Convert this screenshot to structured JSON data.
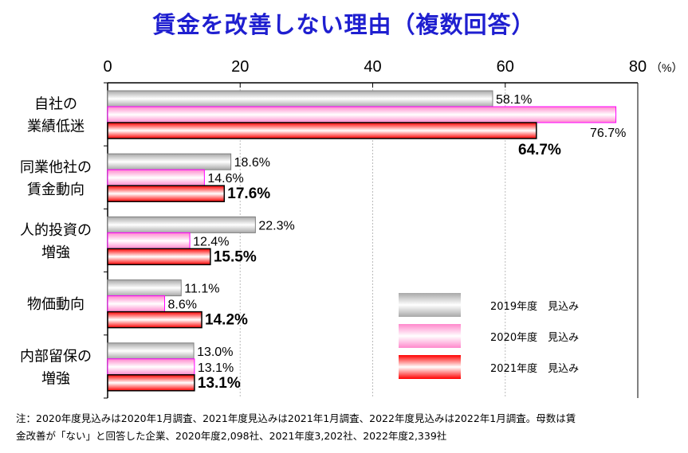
{
  "title": "賃金を改善しない理由（複数回答）",
  "chart_data": {
    "type": "bar",
    "orientation": "horizontal",
    "title": "賃金を改善しない理由（複数回答）",
    "unit_label": "（%）",
    "xlim": [
      0,
      80
    ],
    "ticks": [
      "0",
      "20",
      "40",
      "60",
      "80"
    ],
    "grid": true,
    "legend_position": "bottom-right",
    "categories": [
      [
        "自社の",
        "業績低迷"
      ],
      [
        "同業他社の",
        "賃金動向"
      ],
      [
        "人的投資の",
        "増強"
      ],
      [
        "物価動向"
      ],
      [
        "内部留保の",
        "増強"
      ]
    ],
    "series": [
      {
        "name": "2019年度　見込み",
        "color": "#b0b0b0",
        "edge": "#808080",
        "values": [
          58.1,
          18.6,
          22.3,
          11.1,
          13.0
        ],
        "labels": [
          "58.1%",
          "18.6%",
          "22.3%",
          "11.1%",
          "13.0%"
        ]
      },
      {
        "name": "2020年度　見込み",
        "color": "#ff88cc",
        "edge": "#ff00ff",
        "values": [
          76.7,
          14.6,
          12.4,
          8.6,
          13.1
        ],
        "labels": [
          "76.7%",
          "14.6%",
          "12.4%",
          "8.6%",
          "13.1%"
        ]
      },
      {
        "name": "2021年度　見込み",
        "color": "#ff0000",
        "edge": "#000000",
        "values": [
          64.7,
          17.6,
          15.5,
          14.2,
          13.1
        ],
        "labels": [
          "64.7%",
          "17.6%",
          "15.5%",
          "14.2%",
          "13.1%"
        ]
      }
    ]
  },
  "notes": [
    "注：2020年度見込みは2020年1月調査、2021年度見込みは2021年1月調査、2022年度見込みは2022年1月調査。母数は賃",
    "金改善が「ない」と回答した企業、2020年度2,098社、2021年度3,202社、2022年度2,339社"
  ]
}
